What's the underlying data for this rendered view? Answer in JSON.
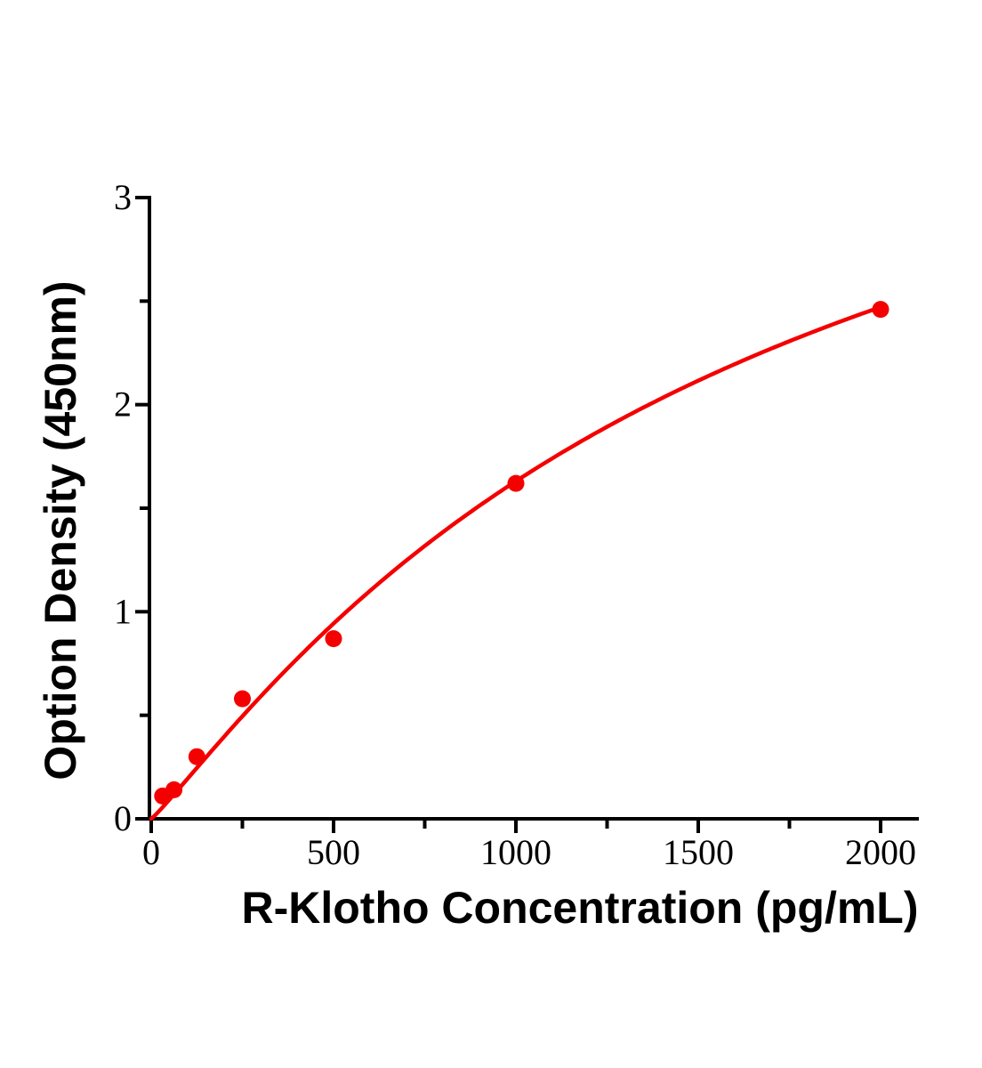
{
  "figure": {
    "background_color": "#ffffff",
    "axis_color": "#000000",
    "accent_color": "#f50000"
  },
  "chart_data": {
    "type": "scatter",
    "title": "",
    "xlabel": "R-Klotho Concentration (pg/mL)",
    "ylabel": "Option Density (450nm)",
    "x": [
      31.25,
      62.5,
      125,
      250,
      500,
      1000,
      2000
    ],
    "y": [
      0.11,
      0.14,
      0.3,
      0.58,
      0.87,
      1.62,
      2.46
    ],
    "xlim": [
      0,
      2105
    ],
    "ylim": [
      0,
      3
    ],
    "x_major_ticks": [
      0,
      500,
      1000,
      1500,
      2000
    ],
    "x_minor_ticks": [
      250,
      750,
      1250,
      1750
    ],
    "y_major_ticks": [
      0,
      1,
      2,
      3
    ],
    "y_minor_ticks": [
      0.5,
      1.5,
      2.5
    ],
    "x_tick_labels": [
      "0",
      "500",
      "1000",
      "1500",
      "2000"
    ],
    "y_tick_labels": [
      "0",
      "1",
      "2",
      "3"
    ],
    "grid": false,
    "legend_position": "none",
    "marker_color": "#f50000",
    "line_color": "#f50000",
    "fit_curve": {
      "type": "4pl",
      "a": 0,
      "b": 1.1,
      "c": 1672,
      "d": 4.5,
      "x_range": [
        0,
        2000
      ]
    }
  }
}
